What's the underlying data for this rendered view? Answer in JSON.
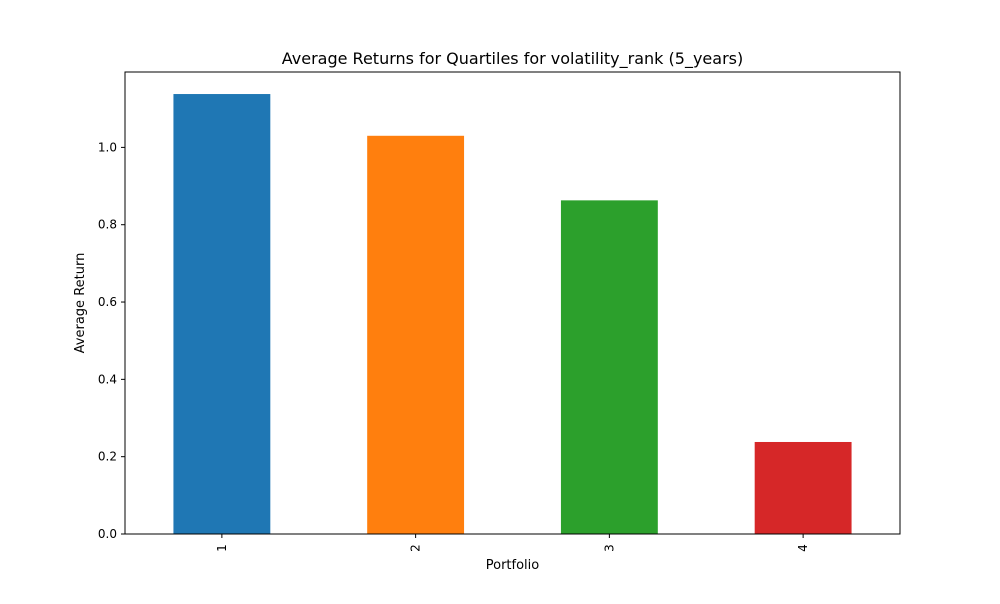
{
  "chart_data": {
    "type": "bar",
    "title": "Average Returns for Quartiles for volatility_rank (5_years)",
    "xlabel": "Portfolio",
    "ylabel": "Average Return",
    "categories": [
      "1",
      "2",
      "3",
      "4"
    ],
    "values": [
      1.138,
      1.03,
      0.863,
      0.238
    ],
    "colors": [
      "#1f77b4",
      "#ff7f0e",
      "#2ca02c",
      "#d62728"
    ],
    "ylim": [
      0,
      1.195
    ],
    "yticks": [
      0.0,
      0.2,
      0.4,
      0.6,
      0.8,
      1.0
    ],
    "ytick_labels": [
      "0.0",
      "0.2",
      "0.4",
      "0.6",
      "0.8",
      "1.0"
    ],
    "grid": false,
    "legend": "none"
  }
}
